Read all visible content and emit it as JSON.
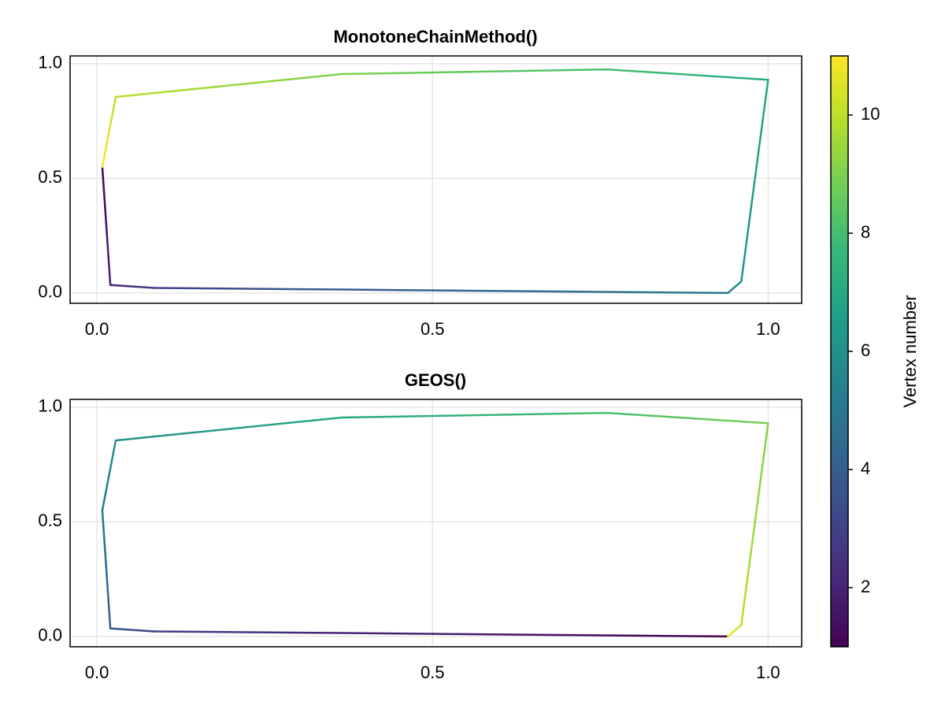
{
  "chart_data": [
    {
      "type": "line",
      "title": "MonotoneChainMethod()",
      "x": [
        0.008,
        0.02,
        0.085,
        0.365,
        0.94,
        0.96,
        1.0,
        0.76,
        0.365,
        0.028,
        0.008
      ],
      "y": [
        0.55,
        0.035,
        0.022,
        0.015,
        0.0,
        0.05,
        0.93,
        0.975,
        0.955,
        0.855,
        0.55
      ],
      "color_values": [
        1,
        2,
        3,
        4,
        5,
        6,
        7,
        8,
        9,
        10,
        11
      ],
      "xlim": [
        -0.04,
        1.05
      ],
      "ylim": [
        -0.045,
        1.034
      ],
      "xticks": [
        {
          "value": 0,
          "label": "0.0"
        },
        {
          "value": 0.5,
          "label": "0.5"
        },
        {
          "value": 1,
          "label": "1.0"
        }
      ],
      "yticks": [
        {
          "value": 0,
          "label": "0.0"
        },
        {
          "value": 0.5,
          "label": "0.5"
        },
        {
          "value": 1,
          "label": "1.0"
        }
      ],
      "grid": true
    },
    {
      "type": "line",
      "title": "GEOS()",
      "x": [
        0.94,
        0.365,
        0.085,
        0.02,
        0.008,
        0.028,
        0.365,
        0.76,
        1.0,
        0.96,
        0.94
      ],
      "y": [
        0.0,
        0.015,
        0.022,
        0.035,
        0.55,
        0.855,
        0.955,
        0.975,
        0.93,
        0.05,
        0.0
      ],
      "color_values": [
        1,
        2,
        3,
        4,
        5,
        6,
        7,
        8,
        9,
        10,
        11
      ],
      "xlim": [
        -0.04,
        1.05
      ],
      "ylim": [
        -0.045,
        1.034
      ],
      "xticks": [
        {
          "value": 0,
          "label": "0.0"
        },
        {
          "value": 0.5,
          "label": "0.5"
        },
        {
          "value": 1,
          "label": "1.0"
        }
      ],
      "yticks": [
        {
          "value": 0,
          "label": "0.0"
        },
        {
          "value": 0.5,
          "label": "0.5"
        },
        {
          "value": 1,
          "label": "1.0"
        }
      ],
      "grid": true
    }
  ],
  "colorbar": {
    "label": "Vertex number",
    "limits": [
      1,
      11
    ],
    "ticks": [
      2,
      4,
      6,
      8,
      10
    ],
    "colormap": [
      "#440154",
      "#482878",
      "#3e4989",
      "#31688e",
      "#26828e",
      "#1f9e89",
      "#35b779",
      "#6ece58",
      "#b5de2b",
      "#fde725"
    ]
  }
}
